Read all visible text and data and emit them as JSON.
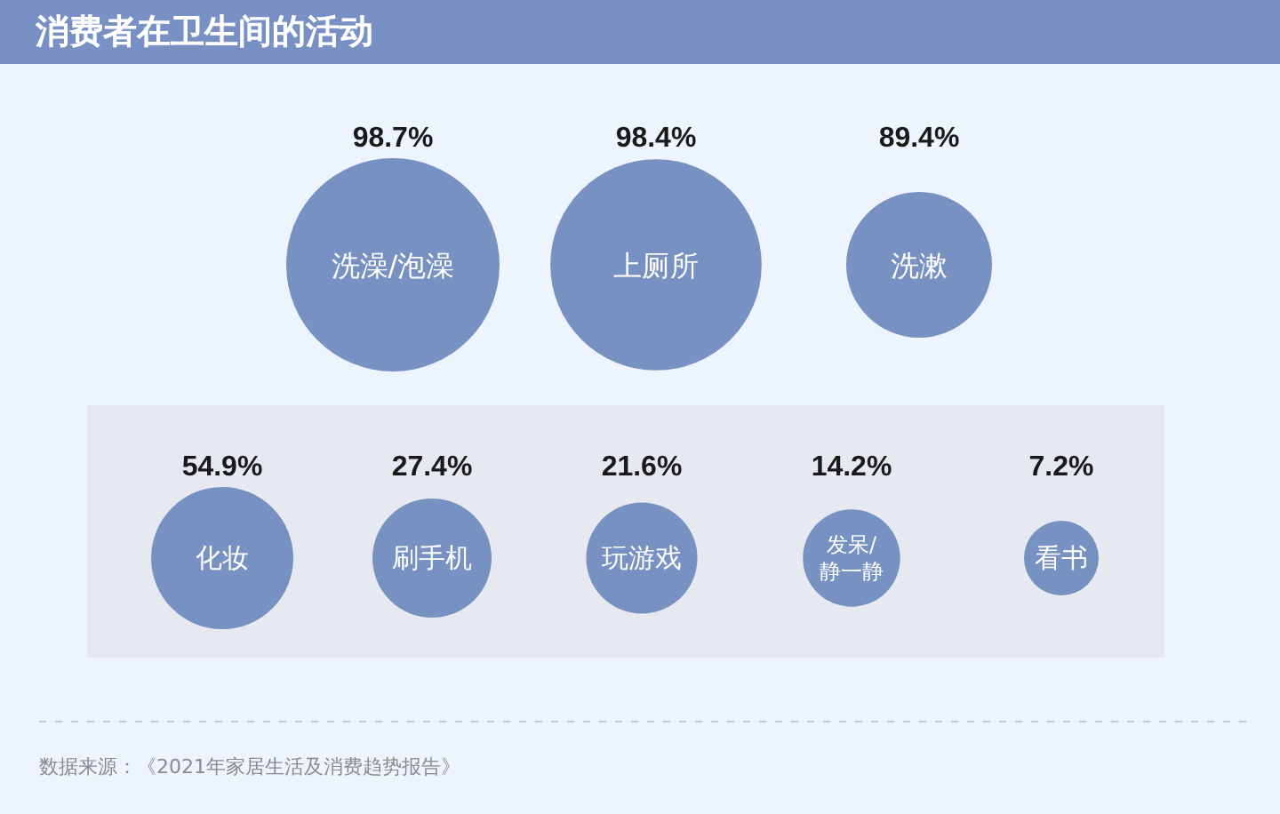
{
  "chart_data": [
    {
      "type": "other",
      "title": "消费者在卫生间的活动",
      "categories": [
        "洗澡/泡澡",
        "上厕所",
        "洗漱"
      ],
      "values": [
        98.7,
        98.4,
        89.4
      ],
      "value_labels": [
        "98.7%",
        "98.4%",
        "89.4%"
      ],
      "color": "#7791c2"
    },
    {
      "type": "other",
      "categories": [
        "化妆",
        "刷手机",
        "玩游戏",
        "发呆/静一静",
        "看书"
      ],
      "values": [
        54.9,
        27.4,
        21.6,
        14.2,
        7.2
      ],
      "value_labels": [
        "54.9%",
        "27.4%",
        "21.6%",
        "14.2%",
        "7.2%"
      ],
      "color": "#7791c2",
      "annotations": [
        "数据来源：《2021年家居生活及消费趋势报告》"
      ]
    }
  ]
}
